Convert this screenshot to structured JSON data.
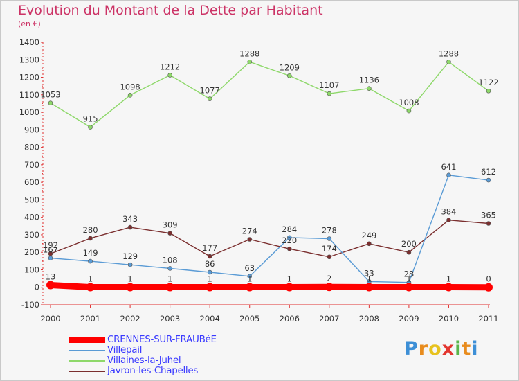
{
  "title": "Evolution du Montant de la Dette par Habitant",
  "unit_label": "(en €)",
  "logo": {
    "letters": [
      "P",
      "r",
      "o",
      "x",
      "i",
      "t",
      "i"
    ],
    "colors": [
      "#3d8fd6",
      "#e88c1e",
      "#e7c21e",
      "#e3362f",
      "#5ab54a",
      "#e88c1e",
      "#3d8fd6"
    ]
  },
  "chart_data": {
    "type": "line",
    "title": "Evolution du Montant de la Dette par Habitant",
    "ylabel": "(en €)",
    "xlabel": "",
    "x": [
      "2000",
      "2001",
      "2002",
      "2003",
      "2004",
      "2005",
      "2006",
      "2007",
      "2008",
      "2009",
      "2010",
      "2011"
    ],
    "ylim": [
      -100,
      1400
    ],
    "yticks": [
      -100,
      0,
      100,
      200,
      300,
      400,
      500,
      600,
      700,
      800,
      900,
      1000,
      1100,
      1200,
      1300,
      1400
    ],
    "grid": false,
    "legend_position": "bottom-left",
    "series": [
      {
        "name": "CRENNES-SUR-FRAUBéE",
        "color": "#ff0000",
        "thick": true,
        "values": [
          13,
          1,
          1,
          1,
          1,
          1,
          1,
          2,
          1,
          1,
          1,
          0
        ],
        "labels": [
          "13",
          "1",
          "1",
          "1",
          "1",
          "1",
          "1",
          "2",
          "1",
          "1",
          "1",
          "0"
        ]
      },
      {
        "name": "Villepail",
        "color": "#5a9bd5",
        "thick": false,
        "values": [
          167,
          149,
          129,
          108,
          86,
          63,
          284,
          278,
          33,
          28,
          641,
          612
        ],
        "labels": [
          "167",
          "149",
          "129",
          "108",
          "86",
          "63",
          "284",
          "278",
          "33",
          "28",
          "641",
          "612"
        ]
      },
      {
        "name": "Villaines-la-Juhel",
        "color": "#8ed86a",
        "thick": false,
        "values": [
          1053,
          915,
          1098,
          1212,
          1077,
          1288,
          1209,
          1107,
          1136,
          1008,
          1288,
          1122
        ],
        "labels": [
          "1053",
          "915",
          "1098",
          "1212",
          "1077",
          "1288",
          "1209",
          "1107",
          "1136",
          "1008",
          "1288",
          "1122"
        ]
      },
      {
        "name": "Javron-les-Chapelles",
        "color": "#7b2f2f",
        "thick": false,
        "values": [
          192,
          280,
          343,
          309,
          177,
          274,
          220,
          174,
          249,
          200,
          384,
          365
        ],
        "labels": [
          "192",
          "280",
          "343",
          "309",
          "177",
          "274",
          "220",
          "174",
          "249",
          "200",
          "384",
          "365"
        ]
      }
    ]
  }
}
